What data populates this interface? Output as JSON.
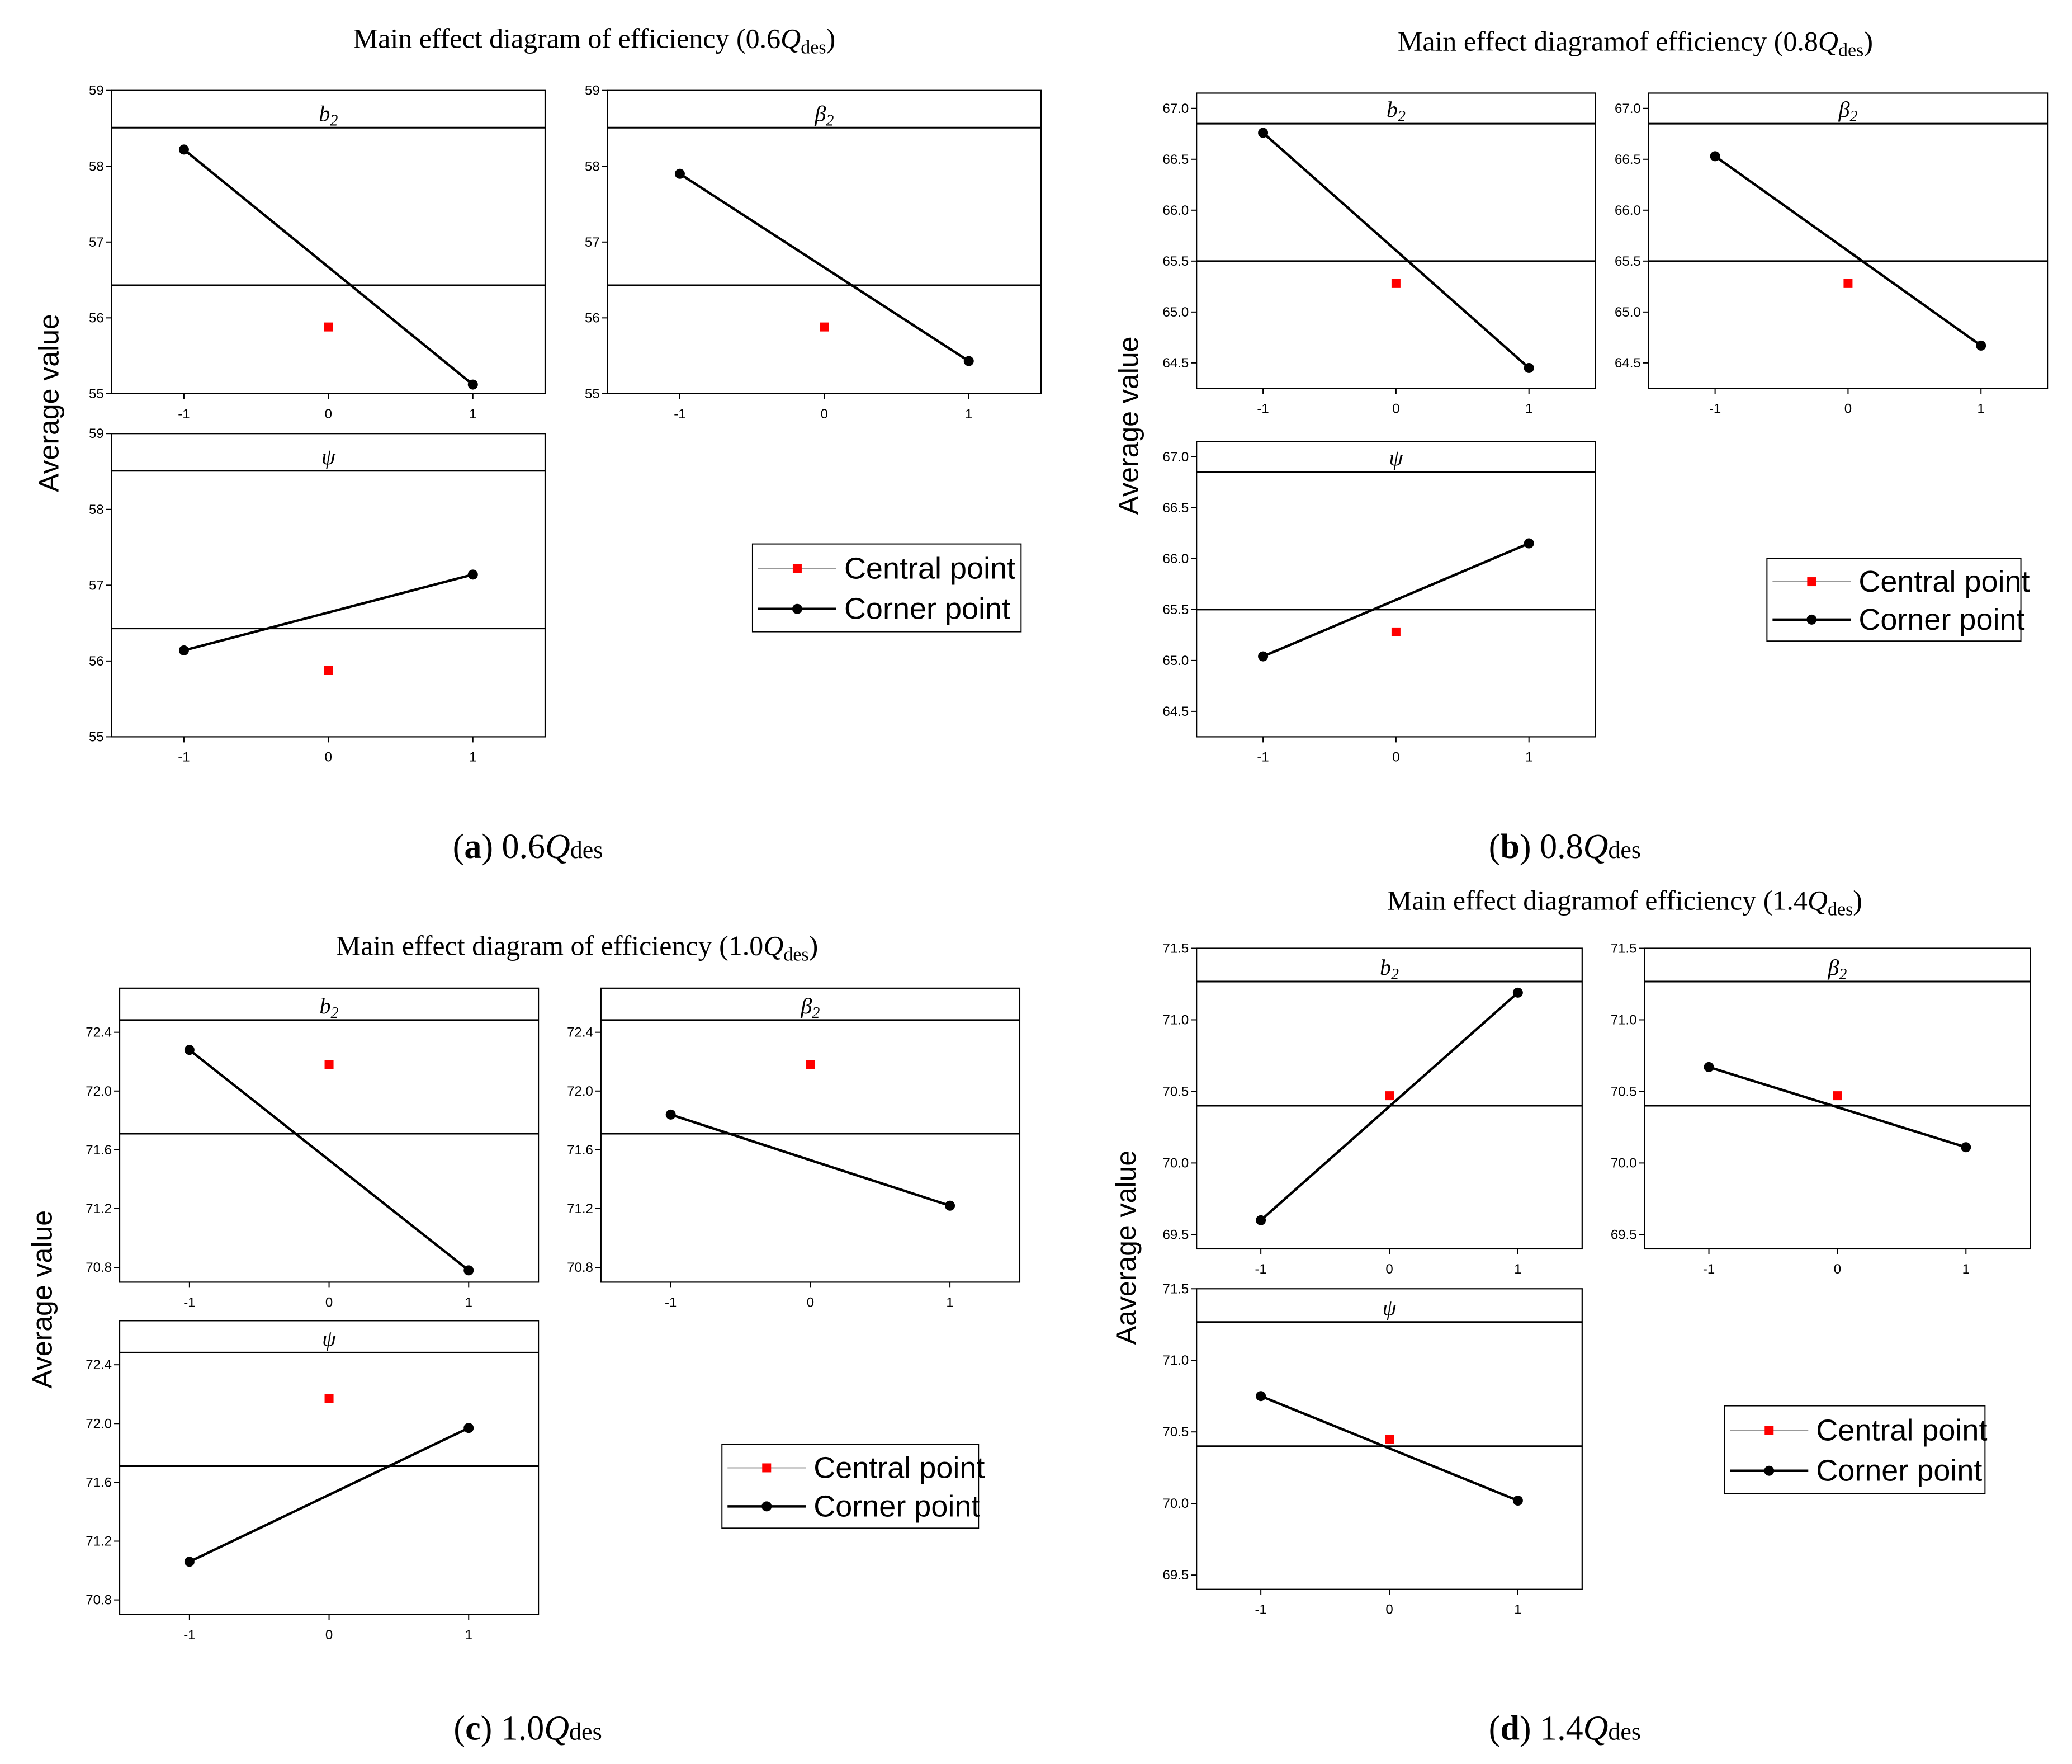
{
  "chart_data": [
    {
      "id": "a",
      "type": "line",
      "title": {
        "prefix": "Main effect diagram of efficiency (0.6",
        "var": "Q",
        "sub": "des",
        "suffix": ")"
      },
      "ylabel": "Average value",
      "caption": {
        "letter": "a",
        "factor": "0.6",
        "var": "Q",
        "sub": "des"
      },
      "ylim": [
        55,
        59
      ],
      "yticks": [
        55,
        56,
        57,
        58,
        59
      ],
      "ytick_labels": [
        "55",
        "56",
        "57",
        "58",
        "59"
      ],
      "xlim": [
        -1.5,
        1.5
      ],
      "xticks": [
        -1,
        0,
        1
      ],
      "xtick_labels": [
        "-1",
        "0",
        "1"
      ],
      "mean_line": 56.43,
      "panels": [
        {
          "name": "b2",
          "label": "b",
          "sub": "2",
          "x": [
            -1,
            1
          ],
          "corner": [
            58.22,
            55.12
          ],
          "center": 55.88
        },
        {
          "name": "beta2",
          "label": "β",
          "sub": "2",
          "x": [
            -1,
            1
          ],
          "corner": [
            57.9,
            55.43
          ],
          "center": 55.88
        },
        {
          "name": "psi",
          "label": "ψ",
          "sub": "",
          "x": [
            -1,
            1
          ],
          "corner": [
            56.14,
            57.14
          ],
          "center": 55.88
        }
      ],
      "legend": {
        "central": "Central point",
        "corner": "Corner point"
      }
    },
    {
      "id": "b",
      "type": "line",
      "title": {
        "prefix": "Main effect diagramof efficiency (0.8",
        "var": "Q",
        "sub": "des",
        "suffix": ")"
      },
      "ylabel": "Average value",
      "caption": {
        "letter": "b",
        "factor": "0.8",
        "var": "Q",
        "sub": "des"
      },
      "ylim": [
        64.25,
        67.15
      ],
      "yticks": [
        64.5,
        65.0,
        65.5,
        66.0,
        66.5,
        67.0
      ],
      "ytick_labels": [
        "64.5",
        "65.0",
        "65.5",
        "66.0",
        "66.5",
        "67.0"
      ],
      "xlim": [
        -1.5,
        1.5
      ],
      "xticks": [
        -1,
        0,
        1
      ],
      "xtick_labels": [
        "-1",
        "0",
        "1"
      ],
      "mean_line": 65.5,
      "panels": [
        {
          "name": "b2",
          "label": "b",
          "sub": "2",
          "x": [
            -1,
            1
          ],
          "corner": [
            66.76,
            64.45
          ],
          "center": 65.28
        },
        {
          "name": "beta2",
          "label": "β",
          "sub": "2",
          "x": [
            -1,
            1
          ],
          "corner": [
            66.53,
            64.67
          ],
          "center": 65.28
        },
        {
          "name": "psi",
          "label": "ψ",
          "sub": "",
          "x": [
            -1,
            1
          ],
          "corner": [
            65.04,
            66.15
          ],
          "center": 65.28
        }
      ],
      "legend": {
        "central": "Central point",
        "corner": "Corner point"
      }
    },
    {
      "id": "c",
      "type": "line",
      "title": {
        "prefix": "Main effect diagram of efficiency (1.0",
        "var": "Q",
        "sub": "des",
        "suffix": ")"
      },
      "ylabel": "Average value",
      "caption": {
        "letter": "c",
        "factor": "1.0",
        "var": "Q",
        "sub": "des"
      },
      "ylim": [
        70.7,
        72.7
      ],
      "yticks": [
        70.8,
        71.2,
        71.6,
        72.0,
        72.4
      ],
      "ytick_labels": [
        "70.8",
        "71.2",
        "71.6",
        "72.0",
        "72.4"
      ],
      "xlim": [
        -1.5,
        1.5
      ],
      "xticks": [
        -1,
        0,
        1
      ],
      "xtick_labels": [
        "-1",
        "0",
        "1"
      ],
      "mean_line": 71.71,
      "panels": [
        {
          "name": "b2",
          "label": "b",
          "sub": "2",
          "x": [
            -1,
            1
          ],
          "corner": [
            72.28,
            70.78
          ],
          "center": 72.18
        },
        {
          "name": "beta2",
          "label": "β",
          "sub": "2",
          "x": [
            -1,
            1
          ],
          "corner": [
            71.84,
            71.22
          ],
          "center": 72.18
        },
        {
          "name": "psi",
          "label": "ψ",
          "sub": "",
          "x": [
            -1,
            1
          ],
          "corner": [
            71.06,
            71.97
          ],
          "center": 72.17
        }
      ],
      "legend": {
        "central": "Central point",
        "corner": "Corner point"
      }
    },
    {
      "id": "d",
      "type": "line",
      "title": {
        "prefix": "Main effect diagramof efficiency (1.4",
        "var": "Q",
        "sub": "des",
        "suffix": ")"
      },
      "ylabel": "Aaverage value",
      "caption": {
        "letter": "d",
        "factor": "1.4",
        "var": "Q",
        "sub": "des"
      },
      "ylim": [
        69.4,
        71.5
      ],
      "yticks": [
        69.5,
        70.0,
        70.5,
        71.0,
        71.5
      ],
      "ytick_labels": [
        "69.5",
        "70.0",
        "70.5",
        "71.0",
        "71.5"
      ],
      "xlim": [
        -1.5,
        1.5
      ],
      "xticks": [
        -1,
        0,
        1
      ],
      "xtick_labels": [
        "-1",
        "0",
        "1"
      ],
      "mean_line": 70.4,
      "panels": [
        {
          "name": "b2",
          "label": "b",
          "sub": "2",
          "x": [
            -1,
            1
          ],
          "corner": [
            69.6,
            71.19
          ],
          "center": 70.47
        },
        {
          "name": "beta2",
          "label": "β",
          "sub": "2",
          "x": [
            -1,
            1
          ],
          "corner": [
            70.67,
            70.11
          ],
          "center": 70.47
        },
        {
          "name": "psi",
          "label": "ψ",
          "sub": "",
          "x": [
            -1,
            1
          ],
          "corner": [
            70.75,
            70.02
          ],
          "center": 70.45
        }
      ],
      "legend": {
        "central": "Central point",
        "corner": "Corner point"
      }
    }
  ]
}
